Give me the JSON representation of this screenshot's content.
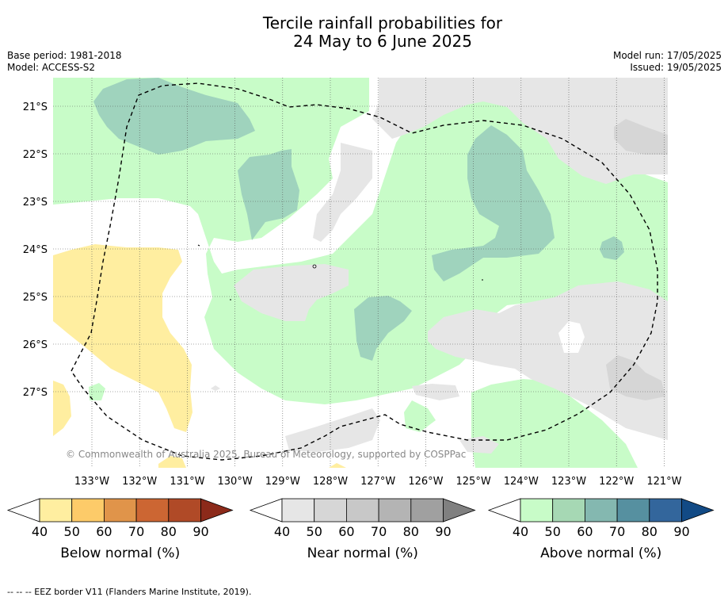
{
  "title_line1": "Tercile rainfall probabilities for",
  "title_line2": "24 May to 6 June 2025",
  "base_period": "Base period: 1981-2018",
  "model": "Model: ACCESS-S2",
  "model_run": "Model run: 17/05/2025",
  "issued": "Issued: 19/05/2025",
  "copyright": "© Commonwealth of Australia 2025, Bureau of Meteorology, supported by COSPPac",
  "longitude_labels": [
    "133°W",
    "132°W",
    "131°W",
    "130°W",
    "129°W",
    "128°W",
    "127°W",
    "126°W",
    "125°W",
    "124°W",
    "123°W",
    "122°W",
    "121°W"
  ],
  "latitude_labels": [
    "21°S",
    "22°S",
    "23°S",
    "24°S",
    "25°S",
    "26°S",
    "27°S"
  ],
  "colorbars": [
    {
      "label": "Below normal (%)",
      "ticks": [
        "40",
        "50",
        "60",
        "70",
        "80",
        "90"
      ],
      "colors": [
        "#ffffff",
        "#ffeea0",
        "#fdcb69",
        "#e0944a",
        "#cc6633",
        "#b04a27",
        "#8c2a1a"
      ]
    },
    {
      "label": "Near normal (%)",
      "ticks": [
        "40",
        "50",
        "60",
        "70",
        "80",
        "90"
      ],
      "colors": [
        "#ffffff",
        "#e6e6e6",
        "#d6d6d6",
        "#c8c8c8",
        "#b4b4b4",
        "#a0a0a0",
        "#808080"
      ]
    },
    {
      "label": "Above normal (%)",
      "ticks": [
        "40",
        "50",
        "60",
        "70",
        "80",
        "90"
      ],
      "colors": [
        "#ffffff",
        "#c8fcc8",
        "#a6d8b4",
        "#84b8b0",
        "#5690a0",
        "#33669c",
        "#124a85"
      ]
    }
  ],
  "footnote": "--  --  -- EEZ border V11 (Flanders Marine Institute, 2019)."
}
